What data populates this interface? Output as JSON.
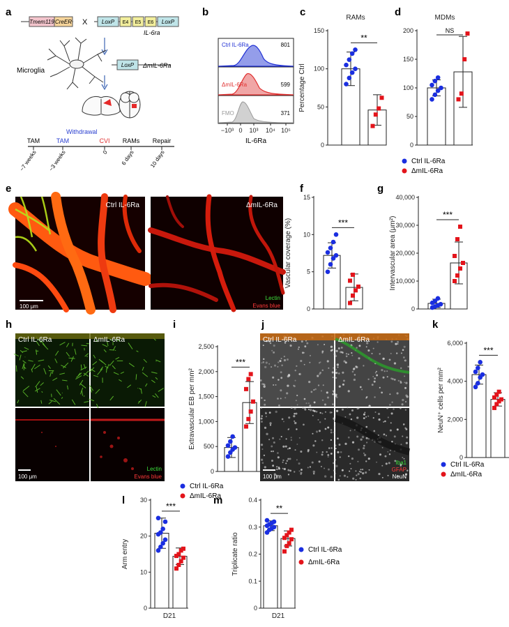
{
  "panel_letters": [
    "a",
    "b",
    "c",
    "d",
    "e",
    "f",
    "g",
    "h",
    "i",
    "j",
    "k",
    "l",
    "m"
  ],
  "panel_a": {
    "gene1": "Tmem119",
    "gene2": "CreER",
    "cross": "X",
    "loxp": "LoxP",
    "e4": "E4",
    "e5": "E5",
    "e6": "E6",
    "il6ra": "IL-6ra",
    "microglia": "Microglia",
    "deleted": "ΔmIL-6Ra",
    "timeline": {
      "top": [
        "TAM",
        "TAM",
        "CVI",
        "RAMs",
        "Repair"
      ],
      "withdrawal": "Withdrawal",
      "bottom": [
        "~7 weeks",
        "~3 weeks",
        "0",
        "6 days",
        "10 days"
      ]
    }
  },
  "panel_b": {
    "xlabel": "IL-6Ra",
    "rows": [
      {
        "name": "Ctrl IL-6Ra",
        "value": "801",
        "color": "#1f2fd4"
      },
      {
        "name": "ΔmIL-6Ra",
        "value": "599",
        "color": "#e03030"
      },
      {
        "name": "FMO",
        "value": "371",
        "color": "#999999"
      }
    ],
    "ticks": [
      "−10³",
      "0",
      "10³",
      "10⁴",
      "10⁵"
    ]
  },
  "legend": {
    "ctrl": "Ctrl IL-6Ra",
    "ko": "ΔmIL-6Ra",
    "ctrl_color": "#1a2ee0",
    "ko_color": "#e3141b"
  },
  "panel_e": {
    "left": "Ctrl IL-6Ra",
    "right": "ΔmIL-6Ra",
    "scale": "100 μm",
    "stain1": "Lectin",
    "stain2": "Evans blue"
  },
  "panel_h": {
    "left": "Ctrl IL-6Ra",
    "right": "ΔmIL-6Ra",
    "scale": "100 μm",
    "stain1": "Lectin",
    "stain2": "Evans blue"
  },
  "panel_j": {
    "left": "Ctrl IL-6Ra",
    "right": "ΔmIL-6Ra",
    "scale": "100 μm",
    "stain1": "Iba1",
    "stain2": "GFAP",
    "stain3": "NeuN"
  },
  "chart_data": [
    {
      "id": "c",
      "type": "bar",
      "title": "RAMs",
      "ylabel": "Percentage Ctrl",
      "ylim": [
        0,
        150
      ],
      "yticks": [
        0,
        50,
        100,
        150
      ],
      "values": [
        100,
        46
      ],
      "errors": [
        22,
        20
      ],
      "significance": "**",
      "points": [
        [
          80,
          88,
          95,
          100,
          105,
          112,
          120,
          125
        ],
        [
          25,
          40,
          48,
          62
        ]
      ]
    },
    {
      "id": "d",
      "type": "bar",
      "title": "MDMs",
      "ylabel": "",
      "ylim": [
        0,
        200
      ],
      "yticks": [
        0,
        50,
        100,
        150,
        200
      ],
      "values": [
        100,
        128
      ],
      "errors": [
        14,
        62
      ],
      "significance": "NS",
      "points": [
        [
          80,
          88,
          95,
          100,
          105,
          112,
          118
        ],
        [
          80,
          90,
          150,
          195
        ]
      ]
    },
    {
      "id": "f",
      "type": "bar",
      "title": "",
      "ylabel": "Vascular coverage (%)",
      "ylim": [
        0,
        15
      ],
      "yticks": [
        0,
        5,
        10,
        15
      ],
      "values": [
        7.2,
        2.9
      ],
      "errors": [
        1.7,
        1.8
      ],
      "significance": "***",
      "points": [
        [
          5.0,
          6.0,
          6.8,
          7.2,
          7.6,
          8.2,
          9.0,
          10.0
        ],
        [
          0.8,
          1.8,
          2.5,
          3.0,
          3.8,
          4.6
        ]
      ]
    },
    {
      "id": "g",
      "type": "bar",
      "title": "",
      "ylabel": "Intervascular area (μm²)",
      "ylim": [
        0,
        40000
      ],
      "yticks": [
        0,
        10000,
        20000,
        30000,
        40000
      ],
      "ytick_labels": [
        "0",
        "10,000",
        "20,000",
        "30,000",
        "40,000"
      ],
      "values": [
        2000,
        16500
      ],
      "errors": [
        1500,
        7500
      ],
      "significance": "***",
      "points": [
        [
          500,
          900,
          1300,
          1700,
          2200,
          2900,
          3800
        ],
        [
          10000,
          12000,
          14500,
          16500,
          19000,
          25000,
          29500
        ]
      ]
    },
    {
      "id": "i",
      "type": "bar",
      "title": "",
      "ylabel": "Extravascular EB per mm²",
      "ylim": [
        0,
        2500
      ],
      "yticks": [
        0,
        500,
        1000,
        1500,
        2000,
        2500
      ],
      "ytick_labels": [
        "0",
        "500",
        "1,000",
        "1,500",
        "2,000",
        "2,500"
      ],
      "values": [
        480,
        1380
      ],
      "errors": [
        200,
        420
      ],
      "significance": "***",
      "points": [
        [
          300,
          380,
          440,
          480,
          520,
          600,
          700
        ],
        [
          900,
          1050,
          1200,
          1400,
          1650,
          1850,
          1950
        ]
      ]
    },
    {
      "id": "k",
      "type": "bar",
      "title": "",
      "ylabel": "NeuN⁺ cells per mm²",
      "ylim": [
        0,
        6000
      ],
      "yticks": [
        0,
        2000,
        4000,
        6000
      ],
      "ytick_labels": [
        "0",
        "2,000",
        "4,000",
        "6,000"
      ],
      "values": [
        4350,
        3050
      ],
      "errors": [
        500,
        350
      ],
      "significance": "***",
      "points": [
        [
          3700,
          3900,
          4200,
          4350,
          4500,
          4700,
          5000
        ],
        [
          2600,
          2800,
          2950,
          3050,
          3150,
          3300,
          3450
        ]
      ]
    },
    {
      "id": "l",
      "type": "bar",
      "title": "",
      "ylabel": "Arm entry",
      "xlabel": "D21",
      "ylim": [
        0,
        30
      ],
      "yticks": [
        0,
        10,
        20,
        30
      ],
      "values": [
        20.8,
        14.4
      ],
      "errors": [
        4.2,
        2.3
      ],
      "significance": "***",
      "points": [
        [
          16,
          17,
          18,
          19,
          20.5,
          21,
          22,
          24,
          25
        ],
        [
          11,
          12,
          13,
          14,
          14.5,
          15,
          16,
          16.5
        ]
      ]
    },
    {
      "id": "m",
      "type": "bar",
      "title": "",
      "ylabel": "Triplicate ratio",
      "xlabel": "D21",
      "ylim": [
        0,
        0.4
      ],
      "yticks": [
        0,
        0.1,
        0.2,
        0.3,
        0.4
      ],
      "ytick_labels": [
        "0",
        "0.1",
        "0.2",
        "0.3",
        "0.4"
      ],
      "values": [
        0.305,
        0.258
      ],
      "errors": [
        0.018,
        0.028
      ],
      "significance": "**",
      "points": [
        [
          0.28,
          0.29,
          0.295,
          0.3,
          0.305,
          0.31,
          0.315,
          0.32,
          0.325
        ],
        [
          0.21,
          0.23,
          0.24,
          0.255,
          0.26,
          0.27,
          0.28,
          0.29
        ]
      ]
    }
  ]
}
